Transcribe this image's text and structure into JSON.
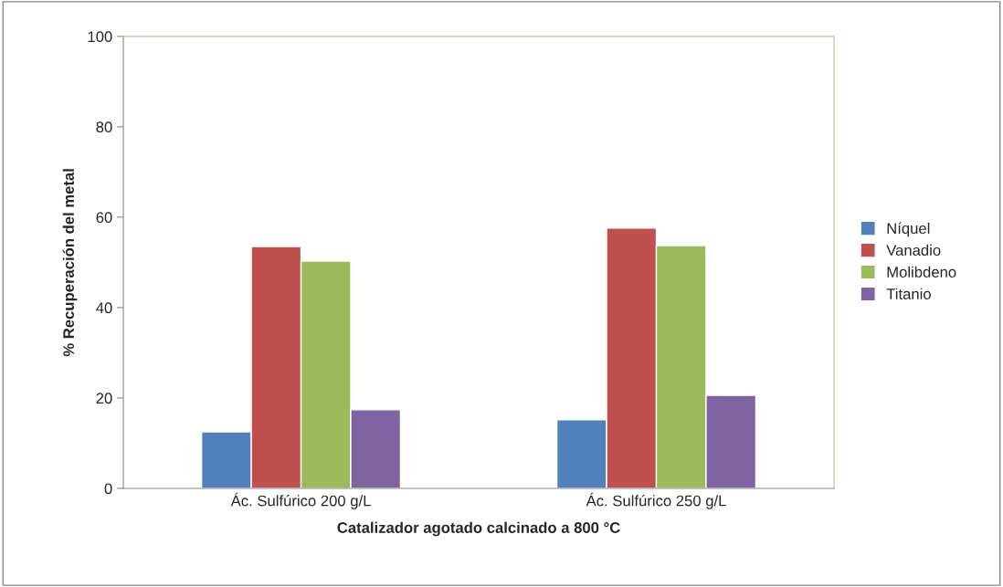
{
  "chart_data": {
    "type": "bar",
    "xlabel": "Catalizador agotado calcinado a 800 °C",
    "ylabel": "% Recuperación del metal",
    "categories": [
      "Ác. Sulfúrico 200 g/L",
      "Ác. Sulfúrico 250 g/L"
    ],
    "series": [
      {
        "name": "Níquel",
        "color": "#4f81bd",
        "values": [
          12.5,
          15.2
        ]
      },
      {
        "name": "Vanadio",
        "color": "#c0504d",
        "values": [
          53.5,
          57.6
        ]
      },
      {
        "name": "Molibdeno",
        "color": "#9bbb59",
        "values": [
          50.3,
          53.7
        ]
      },
      {
        "name": "Titanio",
        "color": "#8064a2",
        "values": [
          17.4,
          20.6
        ]
      }
    ],
    "ylim": [
      0,
      100
    ],
    "yticks": [
      0,
      20,
      40,
      60,
      80,
      100
    ],
    "grid": false,
    "legend": "right"
  }
}
